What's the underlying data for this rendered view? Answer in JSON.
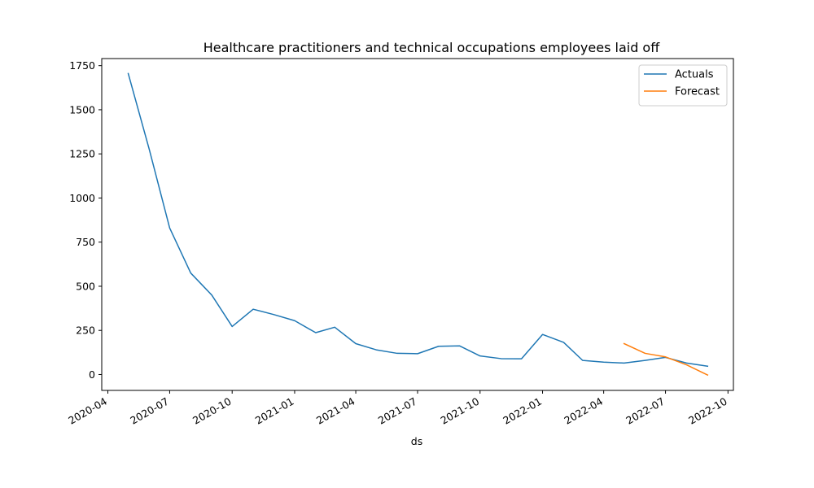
{
  "chart_data": {
    "type": "line",
    "title": "Healthcare practitioners and technical occupations employees laid off",
    "xlabel": "ds",
    "ylabel": "",
    "xlim": [
      "2020-03-23",
      "2022-10-09"
    ],
    "ylim": [
      -90,
      1790
    ],
    "x_ticks": [
      "2020-04",
      "2020-07",
      "2020-10",
      "2021-01",
      "2021-04",
      "2021-07",
      "2021-10",
      "2022-01",
      "2022-04",
      "2022-07",
      "2022-10"
    ],
    "y_ticks": [
      0,
      250,
      500,
      750,
      1000,
      1250,
      1500,
      1750
    ],
    "legend_position": "top-right",
    "grid": false,
    "series": [
      {
        "name": "Actuals",
        "color": "#1f77b4",
        "points": [
          [
            "2020-05-01",
            1705
          ],
          [
            "2020-06-01",
            1275
          ],
          [
            "2020-07-01",
            830
          ],
          [
            "2020-08-01",
            575
          ],
          [
            "2020-09-01",
            450
          ],
          [
            "2020-10-01",
            272
          ],
          [
            "2020-11-01",
            370
          ],
          [
            "2020-12-01",
            340
          ],
          [
            "2021-01-01",
            305
          ],
          [
            "2021-02-01",
            237
          ],
          [
            "2021-03-01",
            268
          ],
          [
            "2021-04-01",
            175
          ],
          [
            "2021-05-01",
            140
          ],
          [
            "2021-06-01",
            120
          ],
          [
            "2021-07-01",
            118
          ],
          [
            "2021-08-01",
            160
          ],
          [
            "2021-09-01",
            162
          ],
          [
            "2021-10-01",
            105
          ],
          [
            "2021-11-01",
            90
          ],
          [
            "2021-12-01",
            89
          ],
          [
            "2022-01-01",
            227
          ],
          [
            "2022-02-01",
            182
          ],
          [
            "2022-03-01",
            80
          ],
          [
            "2022-04-01",
            70
          ],
          [
            "2022-05-01",
            65
          ],
          [
            "2022-06-01",
            80
          ],
          [
            "2022-07-01",
            97
          ],
          [
            "2022-08-01",
            65
          ],
          [
            "2022-09-01",
            47
          ]
        ]
      },
      {
        "name": "Forecast",
        "color": "#ff7f0e",
        "points": [
          [
            "2022-05-01",
            175
          ],
          [
            "2022-06-01",
            120
          ],
          [
            "2022-07-01",
            100
          ],
          [
            "2022-08-01",
            55
          ],
          [
            "2022-09-01",
            -3
          ]
        ]
      }
    ]
  }
}
